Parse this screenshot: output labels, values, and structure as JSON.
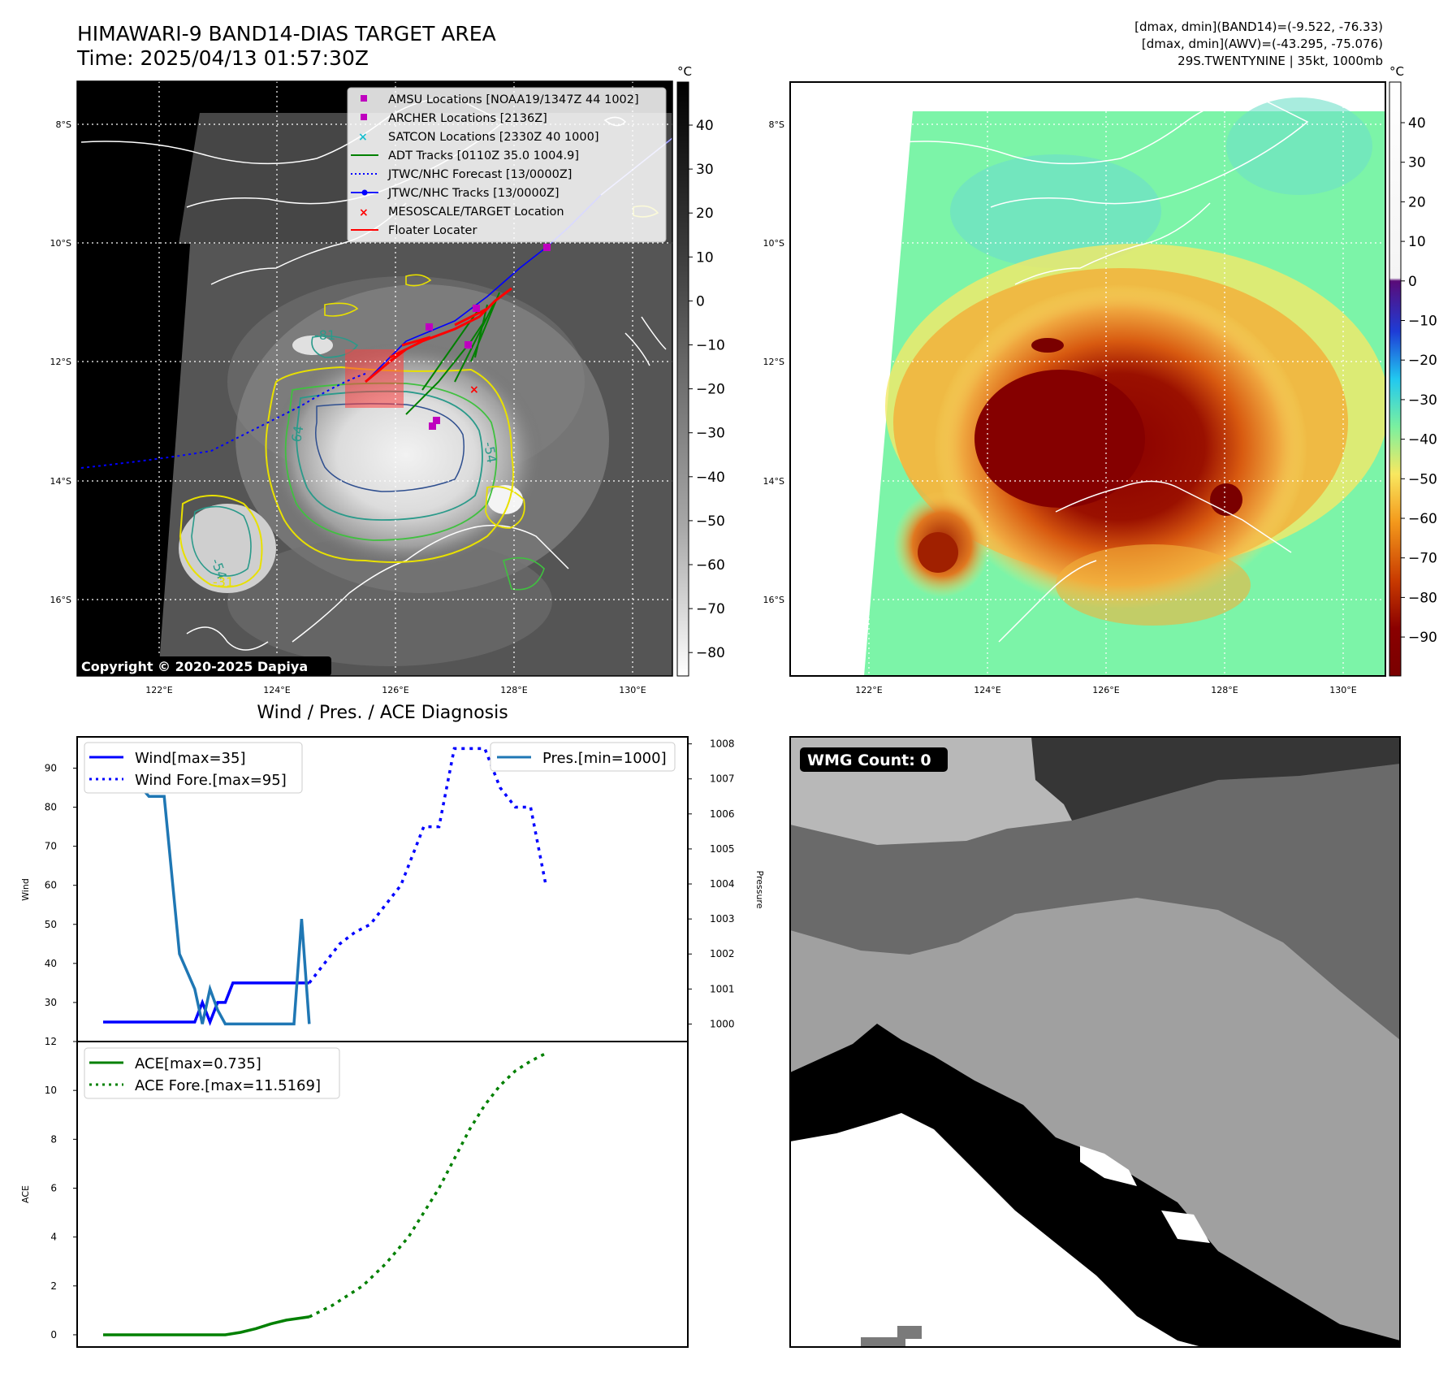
{
  "header": {
    "title_line1": "HIMAWARI-9 BAND14-DIAS TARGET AREA",
    "title_line2": "Time: 2025/04/13 01:57:30Z",
    "info_line1": "[dmax, dmin](BAND14)=(-9.522, -76.33)",
    "info_line2": "[dmax, dmin](AWV)=(-43.295, -75.076)",
    "info_line3": "29S.TWENTYNINE | 35kt, 1000mb"
  },
  "map": {
    "lat_labels": [
      "8°S",
      "10°S",
      "12°S",
      "14°S",
      "16°S"
    ],
    "lon_labels": [
      "122°E",
      "124°E",
      "126°E",
      "128°E",
      "130°E"
    ],
    "copyright": "Copyright © 2020-2025 Dapiya",
    "contour_labels": [
      "-81",
      "64",
      "-54",
      "-54",
      "-31"
    ],
    "legend": [
      {
        "label": "AMSU Locations [NOAA19/1347Z 44 1002]",
        "color": "#bf00bf",
        "marker": "square"
      },
      {
        "label": "ARCHER Locations [2136Z]",
        "color": "#bf00bf",
        "marker": "square"
      },
      {
        "label": "SATCON Locations [2330Z 40 1000]",
        "color": "#17becf",
        "marker": "x"
      },
      {
        "label": "ADT Tracks [0110Z 35.0 1004.9]",
        "color": "#008000",
        "marker": "line"
      },
      {
        "label": "JTWC/NHC Forecast [13/0000Z]",
        "color": "#0000ff",
        "marker": "dotted"
      },
      {
        "label": "JTWC/NHC Tracks [13/0000Z]",
        "color": "#0000ff",
        "marker": "line-dot"
      },
      {
        "label": "MESOSCALE/TARGET Location",
        "color": "#ff0000",
        "marker": "x"
      },
      {
        "label": "Floater Locater",
        "color": "#ff0000",
        "marker": "line"
      }
    ]
  },
  "colorbar_band14": {
    "unit": "°C",
    "ticks": [
      "40",
      "30",
      "20",
      "10",
      "0",
      "−10",
      "−20",
      "−30",
      "−40",
      "−50",
      "−60",
      "−70",
      "−80"
    ]
  },
  "colorbar_awv": {
    "unit": "°C",
    "ticks": [
      "40",
      "30",
      "20",
      "10",
      "0",
      "−10",
      "−20",
      "−30",
      "−40",
      "−50",
      "−60",
      "−70",
      "−80",
      "−90"
    ]
  },
  "wmg": {
    "label": "WMG Count: 0"
  },
  "chart_data": [
    {
      "type": "line",
      "title": "Wind / Pres. / ACE Diagnosis",
      "ylabel": "Wind",
      "ylabel2": "Pressure",
      "ylim": [
        20,
        98
      ],
      "ylim2": [
        999.5,
        1008.2
      ],
      "yticks": [
        30,
        40,
        50,
        60,
        70,
        80,
        90
      ],
      "yticks2": [
        1000,
        1001,
        1002,
        1003,
        1004,
        1005,
        1006,
        1007,
        1008
      ],
      "series": [
        {
          "name": "Wind[max=35]",
          "color": "#0000ff",
          "style": "solid",
          "x": [
            0,
            1,
            2,
            3,
            4,
            5,
            6,
            6.5,
            7,
            7.5,
            8,
            8.5,
            9,
            9.5,
            10,
            11,
            12,
            13,
            13.5
          ],
          "values": [
            25,
            25,
            25,
            25,
            25,
            25,
            25,
            30,
            25,
            30,
            30,
            35,
            35,
            35,
            35,
            35,
            35,
            35,
            35
          ]
        },
        {
          "name": "Wind Fore.[max=95]",
          "color": "#0000ff",
          "style": "dotted",
          "x": [
            13.5,
            14.5,
            15.5,
            16.5,
            17.5,
            18.5,
            19.5,
            20,
            21,
            22,
            22.5,
            23,
            24,
            25,
            26,
            27,
            28,
            29
          ],
          "values": [
            35,
            40,
            45,
            48,
            50,
            55,
            60,
            65,
            75,
            75,
            85,
            95,
            95,
            95,
            85,
            80,
            80,
            60
          ]
        },
        {
          "name": "Pres.[min=1000]",
          "color": "#1f77b4",
          "style": "solid",
          "axis": "right",
          "x": [
            0,
            1,
            2,
            3,
            4,
            5,
            6,
            6.5,
            7,
            7.5,
            8,
            8.5,
            9,
            10,
            11,
            11.5,
            12,
            12.5,
            13,
            13.5
          ],
          "values": [
            1008,
            1007,
            1007,
            1006.5,
            1006.5,
            1002,
            1001,
            1000,
            1001,
            1000.4,
            1000,
            1000,
            1000,
            1000,
            1000,
            1000,
            1000,
            1000,
            1003,
            1000
          ]
        }
      ]
    },
    {
      "type": "line",
      "ylabel": "ACE",
      "ylim": [
        -0.5,
        12
      ],
      "yticks": [
        0,
        2,
        4,
        6,
        8,
        10,
        12
      ],
      "series": [
        {
          "name": "ACE[max=0.735]",
          "color": "#008000",
          "style": "solid",
          "x": [
            0,
            2,
            4,
            6,
            8,
            9,
            10,
            11,
            12,
            13.5
          ],
          "values": [
            0,
            0,
            0,
            0,
            0,
            0.1,
            0.25,
            0.45,
            0.6,
            0.735
          ]
        },
        {
          "name": "ACE Fore.[max=11.5169]",
          "color": "#008000",
          "style": "dotted",
          "x": [
            13.5,
            15,
            17,
            18.5,
            20,
            21,
            22,
            23,
            24,
            25,
            26,
            27,
            28,
            29
          ],
          "values": [
            0.735,
            1.2,
            2,
            2.9,
            4,
            5,
            6,
            7.2,
            8.4,
            9.4,
            10.2,
            10.8,
            11.2,
            11.5169
          ]
        }
      ]
    }
  ]
}
